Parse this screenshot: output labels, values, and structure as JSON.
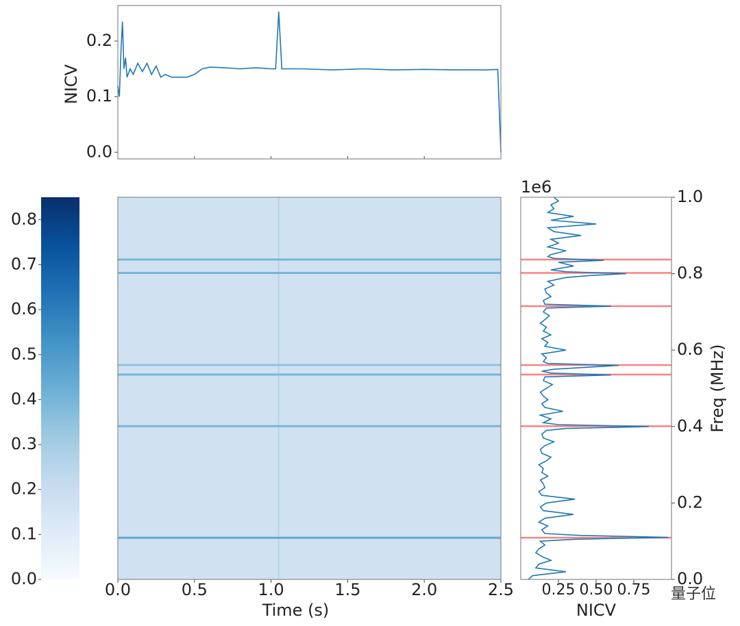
{
  "chart_data": [
    {
      "type": "line",
      "ylabel": "NICV",
      "color": "#1f77b4",
      "x": [
        0,
        0.01,
        0.02,
        0.03,
        0.04,
        0.05,
        0.06,
        0.08,
        0.1,
        0.13,
        0.16,
        0.19,
        0.22,
        0.25,
        0.28,
        0.31,
        0.35,
        0.4,
        0.45,
        0.5,
        0.55,
        0.6,
        0.7,
        0.8,
        0.9,
        1.0,
        1.03,
        1.05,
        1.07,
        1.1,
        1.2,
        1.4,
        1.6,
        1.8,
        2.0,
        2.2,
        2.4,
        2.48,
        2.5
      ],
      "values": [
        0.12,
        0.1,
        0.18,
        0.235,
        0.15,
        0.17,
        0.135,
        0.15,
        0.14,
        0.16,
        0.145,
        0.16,
        0.14,
        0.155,
        0.135,
        0.14,
        0.135,
        0.135,
        0.135,
        0.14,
        0.15,
        0.153,
        0.152,
        0.15,
        0.152,
        0.15,
        0.15,
        0.253,
        0.15,
        0.15,
        0.15,
        0.148,
        0.15,
        0.148,
        0.149,
        0.148,
        0.148,
        0.149,
        0.0
      ],
      "xlim": [
        0,
        2.5
      ],
      "ylim": [
        -0.012,
        0.264
      ],
      "xticks": [
        0,
        0.5,
        1,
        1.5,
        2,
        2.5
      ],
      "yticks": [
        {
          "value": 0,
          "label": "0.0"
        },
        {
          "value": 0.1,
          "label": "0.1"
        },
        {
          "value": 0.2,
          "label": "0.2"
        }
      ]
    },
    {
      "type": "colorbar",
      "vlim": [
        0,
        0.85
      ],
      "ticks": [
        {
          "value": 0,
          "label": "0.0"
        },
        {
          "value": 0.1,
          "label": "0.1"
        },
        {
          "value": 0.2,
          "label": "0.2"
        },
        {
          "value": 0.3,
          "label": "0.3"
        },
        {
          "value": 0.4,
          "label": "0.4"
        },
        {
          "value": 0.5,
          "label": "0.5"
        },
        {
          "value": 0.6,
          "label": "0.6"
        },
        {
          "value": 0.7,
          "label": "0.7"
        },
        {
          "value": 0.8,
          "label": "0.8"
        }
      ],
      "colormap": [
        "#f7fbff",
        "#deebf7",
        "#c6dbef",
        "#9ecae1",
        "#6baed6",
        "#4292c6",
        "#2171b5",
        "#08519c",
        "#08306b"
      ]
    },
    {
      "type": "heatmap",
      "xlabel": "Time (s)",
      "xlim": [
        0,
        2.5
      ],
      "ylim": [
        0,
        1
      ],
      "xticks": [
        {
          "value": 0,
          "label": "0.0"
        },
        {
          "value": 0.5,
          "label": "0.5"
        },
        {
          "value": 1,
          "label": "1.0"
        },
        {
          "value": 1.5,
          "label": "1.5"
        },
        {
          "value": 2,
          "label": "2.0"
        },
        {
          "value": 2.5,
          "label": "2.5"
        }
      ],
      "base": 0.17,
      "row_freqs": [
        0.109,
        0.401,
        0.536,
        0.561,
        0.802,
        0.837
      ],
      "row_values": [
        0.45,
        0.4,
        0.4,
        0.35,
        0.4,
        0.4
      ],
      "column_times": [
        1.05
      ],
      "column_values": [
        0.25
      ]
    },
    {
      "type": "line",
      "orientation": "horizontal",
      "xlabel": "NICV",
      "ylabel": "Freq (MHz)",
      "y_offset_label": "1e6",
      "color": "#1f77b4",
      "freq": [
        0.0,
        0.01,
        0.02,
        0.03,
        0.04,
        0.05,
        0.06,
        0.07,
        0.08,
        0.09,
        0.1,
        0.105,
        0.11,
        0.115,
        0.12,
        0.13,
        0.14,
        0.15,
        0.16,
        0.17,
        0.18,
        0.19,
        0.2,
        0.21,
        0.22,
        0.23,
        0.24,
        0.25,
        0.26,
        0.27,
        0.28,
        0.29,
        0.3,
        0.31,
        0.32,
        0.33,
        0.34,
        0.35,
        0.36,
        0.37,
        0.38,
        0.39,
        0.395,
        0.4,
        0.405,
        0.41,
        0.42,
        0.43,
        0.44,
        0.45,
        0.46,
        0.47,
        0.48,
        0.49,
        0.5,
        0.51,
        0.52,
        0.53,
        0.535,
        0.54,
        0.545,
        0.55,
        0.56,
        0.565,
        0.57,
        0.58,
        0.59,
        0.6,
        0.61,
        0.62,
        0.63,
        0.64,
        0.65,
        0.66,
        0.67,
        0.68,
        0.69,
        0.7,
        0.71,
        0.715,
        0.72,
        0.73,
        0.74,
        0.75,
        0.76,
        0.77,
        0.78,
        0.79,
        0.795,
        0.8,
        0.805,
        0.81,
        0.82,
        0.83,
        0.835,
        0.84,
        0.845,
        0.85,
        0.86,
        0.87,
        0.88,
        0.89,
        0.9,
        0.91,
        0.92,
        0.93,
        0.94,
        0.95,
        0.96,
        0.97,
        0.98,
        0.99,
        1.0
      ],
      "values": [
        0.05,
        0.08,
        0.3,
        0.1,
        0.12,
        0.2,
        0.14,
        0.1,
        0.12,
        0.16,
        0.13,
        0.35,
        0.98,
        0.4,
        0.16,
        0.14,
        0.18,
        0.12,
        0.16,
        0.35,
        0.15,
        0.13,
        0.17,
        0.36,
        0.14,
        0.12,
        0.16,
        0.15,
        0.13,
        0.18,
        0.14,
        0.15,
        0.12,
        0.17,
        0.2,
        0.14,
        0.13,
        0.16,
        0.22,
        0.15,
        0.14,
        0.17,
        0.3,
        0.85,
        0.25,
        0.15,
        0.2,
        0.13,
        0.28,
        0.16,
        0.14,
        0.18,
        0.15,
        0.13,
        0.17,
        0.21,
        0.15,
        0.16,
        0.6,
        0.2,
        0.14,
        0.22,
        0.65,
        0.18,
        0.15,
        0.17,
        0.14,
        0.3,
        0.16,
        0.18,
        0.14,
        0.2,
        0.15,
        0.17,
        0.13,
        0.16,
        0.19,
        0.15,
        0.17,
        0.6,
        0.16,
        0.15,
        0.2,
        0.17,
        0.16,
        0.22,
        0.18,
        0.3,
        0.45,
        0.7,
        0.3,
        0.2,
        0.35,
        0.25,
        0.55,
        0.22,
        0.18,
        0.2,
        0.3,
        0.18,
        0.25,
        0.2,
        0.4,
        0.22,
        0.18,
        0.5,
        0.2,
        0.35,
        0.18,
        0.22,
        0.2,
        0.25,
        0.22
      ],
      "xlim": [
        0,
        1
      ],
      "ylim": [
        0,
        1
      ],
      "xticks": [
        {
          "value": 0.25,
          "label": "0.25"
        },
        {
          "value": 0.5,
          "label": "0.50"
        },
        {
          "value": 0.75,
          "label": "0.75"
        }
      ],
      "yticks": [
        {
          "value": 0,
          "label": "0.0"
        },
        {
          "value": 0.2,
          "label": "0.2"
        },
        {
          "value": 0.4,
          "label": "0.4"
        },
        {
          "value": 0.6,
          "label": "0.6"
        },
        {
          "value": 0.8,
          "label": "0.8"
        },
        {
          "value": 1,
          "label": "1.0"
        }
      ],
      "highlight_freqs": [
        0.109,
        0.401,
        0.536,
        0.561,
        0.715,
        0.802,
        0.837
      ],
      "highlight_color": "#ff6b6b"
    }
  ],
  "watermark": "量子位"
}
